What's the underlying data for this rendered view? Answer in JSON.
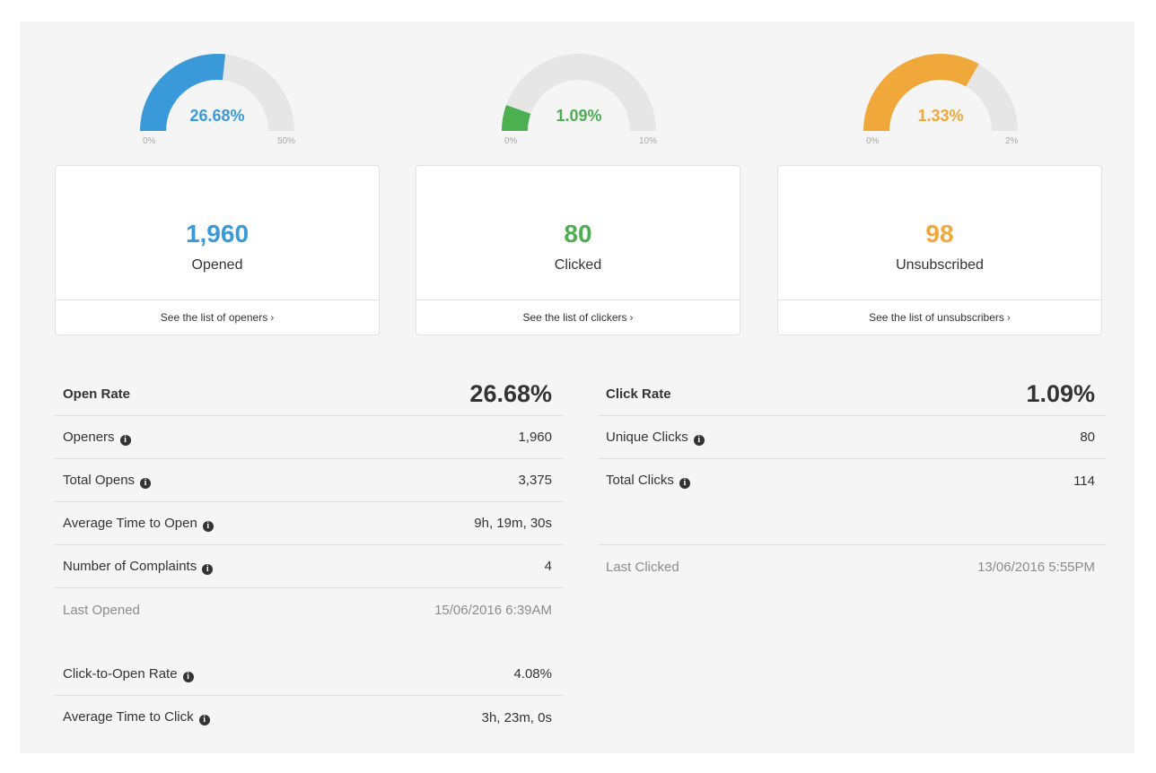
{
  "colors": {
    "opened": "#3a9ad9",
    "clicked": "#4caf50",
    "unsubscribed": "#f0a83a",
    "track": "#e6e6e6"
  },
  "gauges": [
    {
      "id": "open",
      "value_label": "26.68%",
      "min_label": "0%",
      "max_label": "50%",
      "fraction": 0.5336,
      "color": "#3a9ad9"
    },
    {
      "id": "click",
      "value_label": "1.09%",
      "min_label": "0%",
      "max_label": "10%",
      "fraction": 0.109,
      "color": "#4caf50"
    },
    {
      "id": "unsub",
      "value_label": "1.33%",
      "min_label": "0%",
      "max_label": "2%",
      "fraction": 0.665,
      "color": "#f0a83a"
    }
  ],
  "cards": [
    {
      "number": "1,960",
      "label": "Opened",
      "link": "See the list of openers",
      "color": "#3a9ad9"
    },
    {
      "number": "80",
      "label": "Clicked",
      "link": "See the list of clickers",
      "color": "#4caf50"
    },
    {
      "number": "98",
      "label": "Unsubscribed",
      "link": "See the list of unsubscribers",
      "color": "#f0a83a"
    }
  ],
  "open_stats": {
    "header": {
      "label": "Open Rate",
      "value": "26.68%"
    },
    "rows": [
      {
        "label": "Openers",
        "value": "1,960"
      },
      {
        "label": "Total Opens",
        "value": "3,375"
      },
      {
        "label": "Average Time to Open",
        "value": "9h, 19m, 30s"
      },
      {
        "label": "Number of Complaints",
        "value": "4"
      }
    ],
    "last": {
      "label": "Last Opened",
      "value": "15/06/2016 6:39AM"
    },
    "extra": [
      {
        "label": "Click-to-Open Rate",
        "value": "4.08%"
      },
      {
        "label": "Average Time to Click",
        "value": "3h, 23m, 0s"
      }
    ]
  },
  "click_stats": {
    "header": {
      "label": "Click Rate",
      "value": "1.09%"
    },
    "rows": [
      {
        "label": "Unique Clicks",
        "value": "80"
      },
      {
        "label": "Total Clicks",
        "value": "114"
      }
    ],
    "last": {
      "label": "Last Clicked",
      "value": "13/06/2016 5:55PM"
    }
  },
  "info_glyph": "i",
  "chevron_glyph": "›"
}
